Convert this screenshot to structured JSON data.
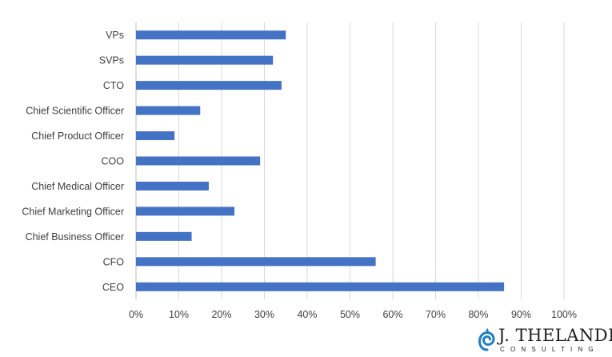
{
  "chart_data": {
    "type": "bar",
    "orientation": "horizontal",
    "title": "",
    "xlabel": "",
    "ylabel": "",
    "categories": [
      "VPs",
      "SVPs",
      "CTO",
      "Chief Scientific Officer",
      "Chief Product Officer",
      "COO",
      "Chief Medical Officer",
      "Chief Marketing Officer",
      "Chief Business Officer",
      "CFO",
      "CEO"
    ],
    "values": [
      35,
      32,
      34,
      15,
      9,
      29,
      17,
      23,
      13,
      56,
      86
    ],
    "xlim": [
      0,
      100
    ],
    "xticks": [
      "0%",
      "10%",
      "20%",
      "30%",
      "40%",
      "50%",
      "60%",
      "70%",
      "80%",
      "90%",
      "100%"
    ],
    "grid": "vertical",
    "legend": "none",
    "bar_color": "#4472c4"
  },
  "branding": {
    "name": "J. THELANDER",
    "sub": "CONSULTING",
    "mark_color": "#1f7fc4",
    "icon": "spiral-logo-icon"
  }
}
